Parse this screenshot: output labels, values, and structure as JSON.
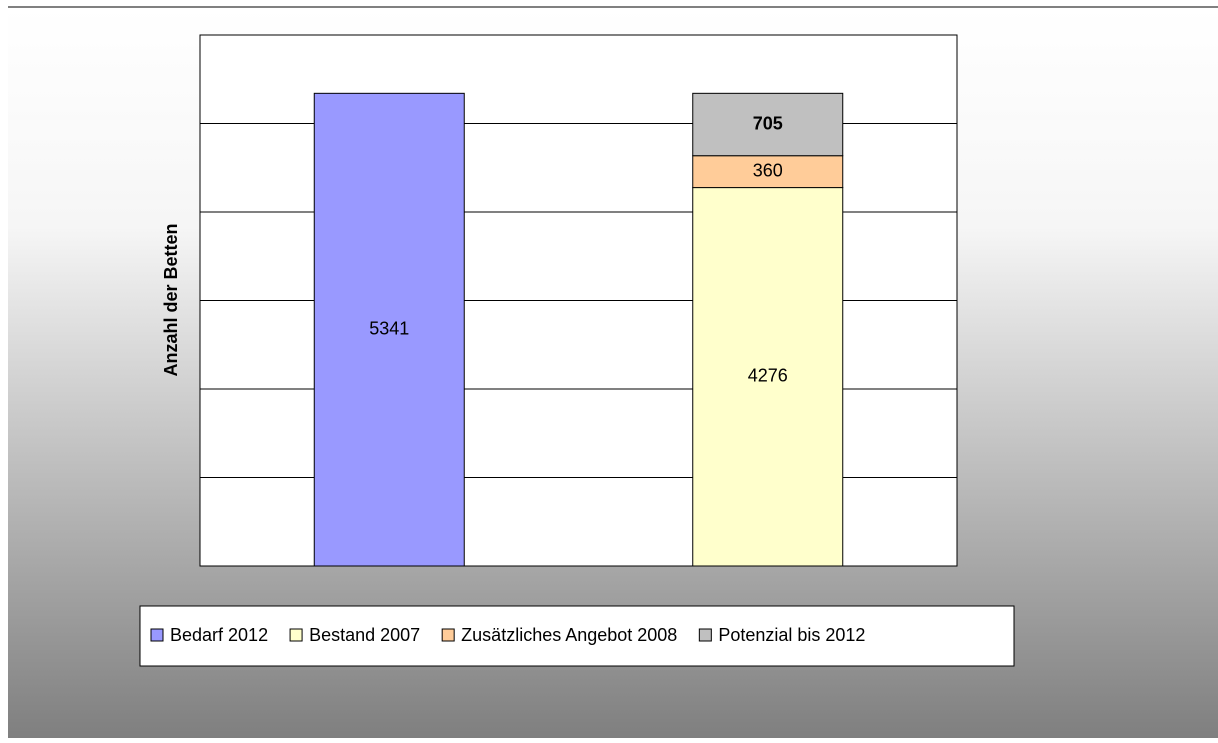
{
  "chart_data": {
    "type": "stacked_bar",
    "y_label": "Anzahl der Betten",
    "categories": [
      null,
      null
    ],
    "series": [
      {
        "name": "Bedarf 2012",
        "color": "#9999ff",
        "values": [
          5341,
          null
        ]
      },
      {
        "name": "Bestand 2007",
        "color": "#ffffcc",
        "values": [
          null,
          4276
        ]
      },
      {
        "name": "Zusätzliches Angebot 2008",
        "color": "#ffcc99",
        "values": [
          null,
          360
        ]
      },
      {
        "name": "Potenzial bis 2012",
        "color": "#c0c0c0",
        "values": [
          null,
          705
        ],
        "label_color": "#ff0000",
        "label_bold": true
      }
    ],
    "ylim": [
      0,
      6000
    ],
    "yticks": [
      0,
      1000,
      2000,
      3000,
      4000,
      5000,
      6000
    ],
    "grid": true,
    "legend": "bottom"
  }
}
